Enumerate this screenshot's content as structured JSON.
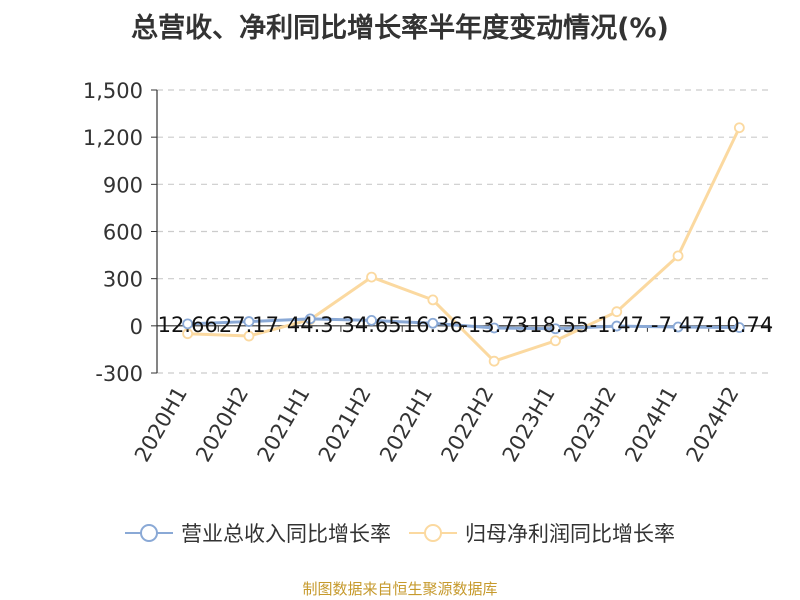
{
  "title": "总营收、净利同比增长率半年度变动情况(%)",
  "source": "制图数据来自恒生聚源数据库",
  "colors": {
    "revenue": "#8aa9d6",
    "profit": "#fbd9a0"
  },
  "chart_data": {
    "type": "line",
    "categories": [
      "2020H1",
      "2020H2",
      "2021H1",
      "2021H2",
      "2022H1",
      "2022H2",
      "2023H1",
      "2023H2",
      "2024H1",
      "2024H2"
    ],
    "yticks": [
      "-300",
      "0",
      "300",
      "600",
      "900",
      "1,200",
      "1,500"
    ],
    "ylim": [
      -300,
      1500
    ],
    "grid": true,
    "legend_position": "bottom",
    "series": [
      {
        "name": "营业总收入同比增长率",
        "values": [
          12.66,
          27.17,
          44.3,
          34.65,
          16.36,
          -13.73,
          -18.55,
          -1.47,
          -7.47,
          -10.74
        ],
        "labels": [
          "12.66",
          "27.17",
          "44.3",
          "34.65",
          "16.36",
          "-13.73",
          "-18.55",
          "-1.47",
          "-7.47",
          "-10.74"
        ]
      },
      {
        "name": "归母净利润同比增长率",
        "values": [
          -50,
          -65,
          40,
          310,
          165,
          -225,
          -95,
          90,
          445,
          1260
        ]
      }
    ]
  }
}
